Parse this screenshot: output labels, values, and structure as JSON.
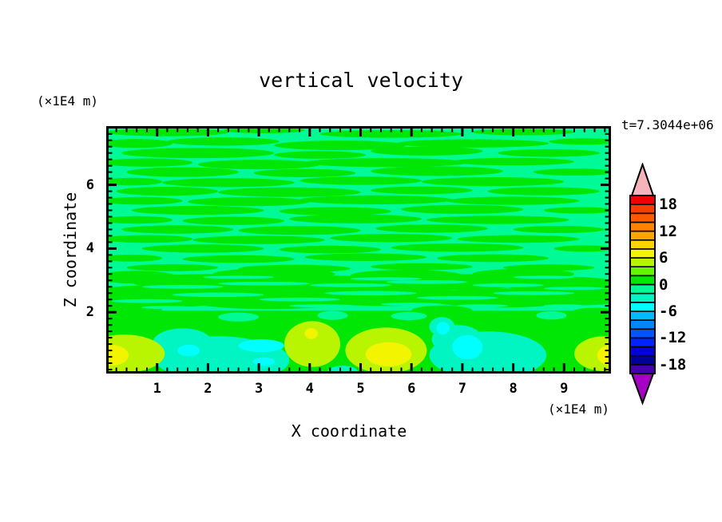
{
  "page": {
    "background": "#ffffff"
  },
  "chart_data": {
    "type": "filled_contour",
    "title": "vertical velocity",
    "time_label": "t=7.3044e+06",
    "xlabel": "X coordinate",
    "ylabel": "Z coordinate",
    "x_axis_unit": "(×1E4 m)",
    "z_axis_unit": "(×1E4 m)",
    "xlim": [
      0,
      9.92
    ],
    "zlim": [
      0,
      7.85
    ],
    "xticks": [
      1,
      2,
      3,
      4,
      5,
      6,
      7,
      8,
      9
    ],
    "zticks": [
      2,
      4,
      6
    ],
    "minor_tick_step": 0.2,
    "grid": false,
    "legend_position": "right-colorbar",
    "colorbar": {
      "min": -20,
      "max": 20,
      "step": 2,
      "tick_values": [
        18,
        12,
        6,
        0,
        -6,
        -12,
        -18
      ],
      "tick_labels": [
        "18",
        "12",
        "6",
        "0",
        "-6",
        "-12",
        "-18"
      ],
      "colors_bottom_to_top": [
        "#4600aa",
        "#00009b",
        "#0000d7",
        "#0023ff",
        "#0055ff",
        "#0087ff",
        "#00baff",
        "#00ffff",
        "#00f5c3",
        "#00fa96",
        "#00e605",
        "#64f500",
        "#b9f500",
        "#f3f500",
        "#ffd200",
        "#ffa500",
        "#ff8200",
        "#ff5a00",
        "#fa3c00",
        "#f50000"
      ],
      "over_color": "#f7b3bc",
      "under_color": "#a500c3",
      "outline_color": "#000000"
    },
    "field": {
      "background_level": -1,
      "streak_level": 1,
      "lower_band_zmax": 2.05,
      "streaks": [
        [
          1.2,
          7.65,
          1.2,
          0.12
        ],
        [
          3.1,
          7.72,
          0.8,
          0.1
        ],
        [
          5.6,
          7.6,
          1.4,
          0.12
        ],
        [
          8.2,
          7.66,
          1.0,
          0.1
        ],
        [
          0.6,
          7.3,
          0.7,
          0.14
        ],
        [
          2.3,
          7.36,
          1.1,
          0.13
        ],
        [
          4.6,
          7.24,
          1.3,
          0.15
        ],
        [
          7.2,
          7.3,
          1.5,
          0.13
        ],
        [
          9.4,
          7.36,
          0.7,
          0.1
        ],
        [
          1.8,
          7.0,
          1.5,
          0.16
        ],
        [
          4.2,
          6.94,
          0.9,
          0.12
        ],
        [
          6.3,
          7.06,
          1.1,
          0.14
        ],
        [
          8.7,
          7.0,
          1.0,
          0.12
        ],
        [
          0.8,
          6.7,
          0.9,
          0.13
        ],
        [
          3.0,
          6.64,
          1.2,
          0.15
        ],
        [
          5.5,
          6.7,
          1.6,
          0.14
        ],
        [
          8.0,
          6.73,
          1.2,
          0.12
        ],
        [
          1.5,
          6.4,
          1.1,
          0.15
        ],
        [
          3.9,
          6.37,
          1.0,
          0.13
        ],
        [
          6.5,
          6.43,
          1.3,
          0.15
        ],
        [
          9.2,
          6.4,
          0.8,
          0.11
        ],
        [
          0.5,
          6.1,
          0.6,
          0.12
        ],
        [
          2.4,
          6.07,
          1.3,
          0.14
        ],
        [
          5.0,
          6.13,
          1.2,
          0.13
        ],
        [
          7.6,
          6.1,
          1.4,
          0.14
        ],
        [
          1.2,
          5.8,
          1.0,
          0.14
        ],
        [
          3.6,
          5.77,
          1.4,
          0.15
        ],
        [
          6.2,
          5.83,
          1.0,
          0.12
        ],
        [
          8.6,
          5.8,
          1.1,
          0.13
        ],
        [
          0.7,
          5.5,
          0.8,
          0.12
        ],
        [
          2.8,
          5.47,
          1.2,
          0.14
        ],
        [
          5.3,
          5.53,
          1.5,
          0.14
        ],
        [
          8.0,
          5.5,
          1.3,
          0.13
        ],
        [
          1.8,
          5.2,
          1.3,
          0.14
        ],
        [
          4.5,
          5.17,
          1.1,
          0.13
        ],
        [
          7.0,
          5.23,
          1.2,
          0.14
        ],
        [
          9.3,
          5.2,
          0.7,
          0.1
        ],
        [
          0.6,
          4.9,
          0.7,
          0.12
        ],
        [
          2.5,
          4.87,
          1.0,
          0.13
        ],
        [
          4.9,
          4.93,
          1.3,
          0.14
        ],
        [
          7.7,
          4.9,
          1.4,
          0.13
        ],
        [
          1.4,
          4.6,
          1.1,
          0.13
        ],
        [
          3.8,
          4.57,
          1.2,
          0.14
        ],
        [
          6.4,
          4.63,
          1.1,
          0.13
        ],
        [
          8.9,
          4.6,
          0.9,
          0.11
        ],
        [
          0.8,
          4.3,
          0.9,
          0.12
        ],
        [
          3.0,
          4.27,
          1.3,
          0.13
        ],
        [
          5.6,
          4.33,
          1.2,
          0.13
        ],
        [
          8.1,
          4.3,
          1.2,
          0.12
        ],
        [
          1.9,
          4.0,
          1.2,
          0.13
        ],
        [
          4.4,
          3.97,
          1.0,
          0.12
        ],
        [
          6.9,
          4.03,
          1.3,
          0.13
        ],
        [
          9.4,
          4.0,
          0.6,
          0.1
        ],
        [
          0.5,
          3.7,
          0.6,
          0.11
        ],
        [
          2.6,
          3.67,
          1.1,
          0.12
        ],
        [
          5.1,
          3.73,
          1.2,
          0.12
        ],
        [
          7.6,
          3.7,
          1.1,
          0.12
        ],
        [
          1.3,
          3.4,
          0.9,
          0.11
        ],
        [
          3.7,
          3.37,
          1.1,
          0.12
        ],
        [
          6.2,
          3.43,
          1.0,
          0.11
        ],
        [
          8.7,
          3.4,
          0.9,
          0.1
        ]
      ],
      "lower_green_blobs": [
        [
          1.0,
          2.5,
          1.6,
          0.35
        ],
        [
          3.2,
          2.45,
          1.8,
          0.35
        ],
        [
          5.5,
          2.5,
          1.7,
          0.3
        ],
        [
          7.8,
          2.45,
          1.6,
          0.3
        ],
        [
          9.3,
          2.5,
          1.0,
          0.28
        ],
        [
          2.0,
          2.95,
          1.5,
          0.25
        ],
        [
          4.4,
          2.9,
          1.6,
          0.25
        ],
        [
          6.8,
          2.95,
          1.5,
          0.25
        ],
        [
          8.9,
          2.9,
          1.2,
          0.22
        ],
        [
          0.6,
          3.1,
          0.8,
          0.2
        ],
        [
          3.3,
          3.2,
          1.2,
          0.18
        ],
        [
          5.9,
          3.15,
          1.1,
          0.18
        ],
        [
          8.2,
          3.2,
          1.0,
          0.16
        ],
        [
          0.5,
          2.1,
          0.6,
          0.2
        ],
        [
          6.6,
          2.05,
          0.6,
          0.16
        ],
        [
          9.6,
          2.0,
          0.45,
          0.14
        ]
      ],
      "lower_spring_streaks": [
        [
          0.8,
          2.35,
          0.7,
          0.06
        ],
        [
          2.2,
          2.55,
          0.9,
          0.07
        ],
        [
          3.8,
          2.4,
          0.8,
          0.06
        ],
        [
          5.2,
          2.6,
          0.9,
          0.07
        ],
        [
          6.9,
          2.45,
          0.8,
          0.06
        ],
        [
          8.4,
          2.6,
          0.8,
          0.06
        ],
        [
          1.5,
          2.8,
          0.8,
          0.06
        ],
        [
          3.1,
          2.9,
          0.9,
          0.06
        ],
        [
          4.8,
          2.85,
          0.8,
          0.06
        ],
        [
          6.3,
          2.95,
          0.8,
          0.06
        ],
        [
          7.9,
          2.85,
          0.7,
          0.06
        ],
        [
          9.2,
          2.75,
          0.6,
          0.05
        ],
        [
          2.6,
          3.1,
          0.7,
          0.05
        ],
        [
          5.5,
          3.05,
          0.7,
          0.05
        ],
        [
          8.6,
          3.1,
          0.6,
          0.05
        ],
        [
          4.2,
          2.2,
          0.6,
          0.05
        ],
        [
          6.0,
          2.25,
          0.6,
          0.05
        ],
        [
          1.2,
          2.15,
          0.5,
          0.05
        ],
        [
          7.4,
          2.2,
          0.5,
          0.05
        ],
        [
          9.0,
          2.2,
          0.4,
          0.05
        ],
        [
          2.6,
          1.85,
          0.4,
          0.14
        ],
        [
          4.45,
          1.9,
          0.3,
          0.14
        ],
        [
          5.95,
          1.88,
          0.35,
          0.13
        ],
        [
          8.75,
          1.9,
          0.3,
          0.13
        ]
      ],
      "features": [
        {
          "name": "turquoise-downdraft-patches",
          "level": -3,
          "ellipses": [
            [
              2.2,
              0.55,
              1.25,
              0.7
            ],
            [
              1.5,
              1.0,
              0.6,
              0.5
            ],
            [
              3.0,
              0.5,
              0.6,
              0.5
            ],
            [
              4.65,
              0.12,
              0.3,
              0.2
            ],
            [
              7.5,
              0.65,
              1.15,
              0.75
            ],
            [
              6.9,
              1.15,
              0.5,
              0.45
            ],
            [
              6.6,
              1.55,
              0.25,
              0.3
            ]
          ]
        },
        {
          "name": "cyan-downdraft-cores",
          "level": -5,
          "ellipses": [
            [
              1.62,
              0.8,
              0.22,
              0.18
            ],
            [
              3.05,
              0.95,
              0.45,
              0.2
            ],
            [
              3.1,
              0.45,
              0.22,
              0.13
            ],
            [
              7.1,
              0.9,
              0.3,
              0.38
            ],
            [
              6.62,
              1.5,
              0.13,
              0.2
            ]
          ]
        },
        {
          "name": "updraft-halos",
          "level": 5,
          "ellipses": [
            [
              0.35,
              0.7,
              0.8,
              0.6
            ],
            [
              4.05,
              1.0,
              0.55,
              0.72
            ],
            [
              5.5,
              0.8,
              0.8,
              0.72
            ],
            [
              9.8,
              0.7,
              0.6,
              0.55
            ]
          ]
        },
        {
          "name": "updraft-yellow-cores",
          "level": 7,
          "ellipses": [
            [
              0.12,
              0.65,
              0.32,
              0.32
            ],
            [
              4.03,
              1.33,
              0.13,
              0.17
            ],
            [
              5.55,
              0.68,
              0.45,
              0.38
            ],
            [
              9.95,
              0.65,
              0.3,
              0.33
            ]
          ]
        }
      ]
    }
  }
}
